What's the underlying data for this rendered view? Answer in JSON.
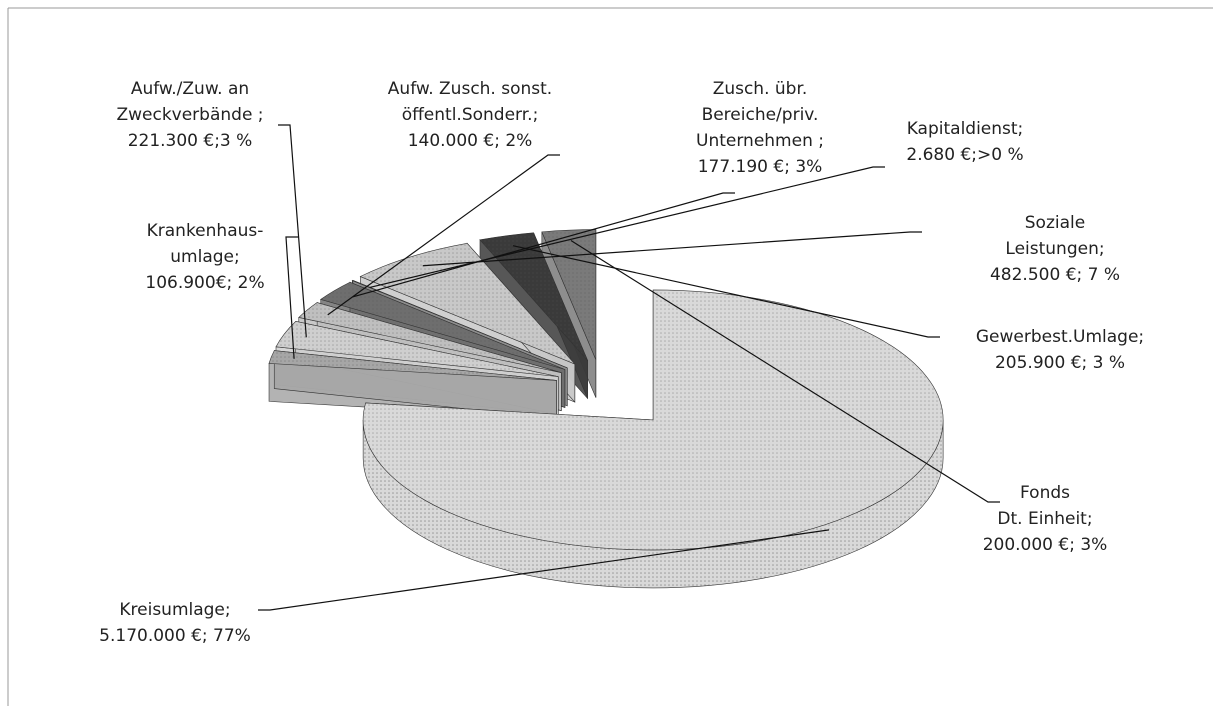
{
  "chart_data": {
    "type": "pie",
    "categories": [
      "Kreisumlage;",
      "Krankenhaus-\numlage;",
      "Aufw./Zuw. an\nZweckverbände ;",
      "Aufw. Zusch.  sonst.\nöffentl.Sonderr.;",
      "Zusch. übr.\nBereiche/priv.\nUnternehmen ;",
      "Kapitaldienst;",
      "Soziale Leistungen;",
      "Gewerbest.Umlage;",
      "Fonds\nDt. Einheit;"
    ],
    "values": [
      5170000,
      106900,
      221300,
      140000,
      177190,
      2680,
      482500,
      205900,
      200000
    ],
    "value_labels": [
      "5.170.000 €; 77%",
      "106.900€; 2%",
      "221.300 €;3 %",
      "140.000 €; 2%",
      "177.190 €; 3%",
      "2.680 €;>0 %",
      "482.500 €; 7 %",
      "205.900 €; 3 %",
      "200.000 €; 3%"
    ],
    "colors": [
      "#d9d9d9",
      "#a6a6a6",
      "#cfcfcf",
      "#bfbfbf",
      "#6e6e6e",
      "#8c8c8c",
      "#c8c8c8",
      "#3a3a3a",
      "#7a7a7a"
    ]
  }
}
